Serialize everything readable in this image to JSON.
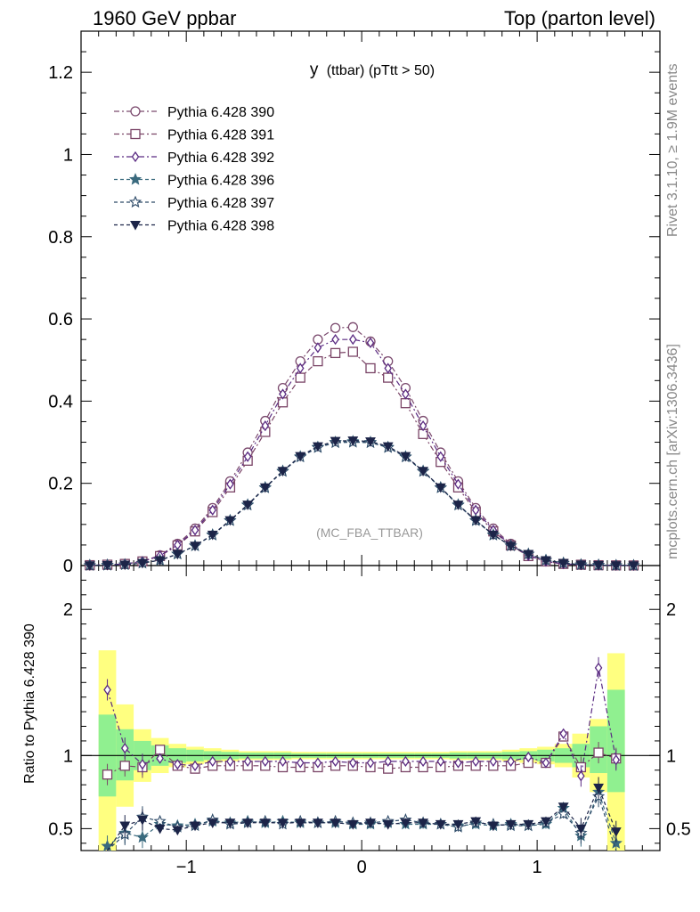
{
  "header": {
    "left": "1960 GeV ppbar",
    "right": "Top (parton level)"
  },
  "side_text": {
    "rivet": "Rivet 3.1.10, ≥ 1.9M events",
    "source": "mcplots.cern.ch [arXiv:1306.3436]"
  },
  "chart_data": [
    {
      "type": "line",
      "title_main": "y",
      "title_sub": "(ttbar) (pTtt > 50)",
      "watermark": "(MC_FBA_TTBAR)",
      "xlim": [
        -1.6,
        1.7
      ],
      "ylim": [
        0,
        1.3
      ],
      "ytick_labels": [
        "0",
        "0.2",
        "0.4",
        "0.6",
        "0.8",
        "1",
        "1.2"
      ],
      "legend_position": "top-left",
      "x": [
        -1.55,
        -1.45,
        -1.35,
        -1.25,
        -1.15,
        -1.05,
        -0.95,
        -0.85,
        -0.75,
        -0.65,
        -0.55,
        -0.45,
        -0.35,
        -0.25,
        -0.15,
        -0.05,
        0.05,
        0.15,
        0.25,
        0.35,
        0.45,
        0.55,
        0.65,
        0.75,
        0.85,
        0.95,
        1.05,
        1.15,
        1.25,
        1.35,
        1.45,
        1.55
      ],
      "series": [
        {
          "name": "Pythia 6.428 390",
          "color": "#7b4a6e",
          "marker": "circle-open",
          "dash": "6,3,2,3",
          "values": [
            0.001,
            0.002,
            0.004,
            0.01,
            0.025,
            0.053,
            0.09,
            0.14,
            0.205,
            0.275,
            0.352,
            0.432,
            0.497,
            0.55,
            0.578,
            0.58,
            0.545,
            0.497,
            0.432,
            0.352,
            0.275,
            0.205,
            0.14,
            0.09,
            0.053,
            0.025,
            0.01,
            0.004,
            0.002,
            0.001,
            0.0005,
            0.0003
          ]
        },
        {
          "name": "Pythia 6.428 391",
          "color": "#7a4466",
          "marker": "square-open",
          "dash": "6,3,2,3",
          "values": [
            0.0009,
            0.002,
            0.004,
            0.01,
            0.023,
            0.049,
            0.083,
            0.13,
            0.19,
            0.255,
            0.325,
            0.397,
            0.457,
            0.497,
            0.517,
            0.52,
            0.48,
            0.457,
            0.395,
            0.32,
            0.252,
            0.19,
            0.13,
            0.083,
            0.049,
            0.023,
            0.01,
            0.004,
            0.002,
            0.0008,
            0.0004,
            0.0003
          ]
        },
        {
          "name": "Pythia 6.428 392",
          "color": "#5a2a82",
          "marker": "diamond-open",
          "dash": "6,3,2,3",
          "values": [
            0.001,
            0.002,
            0.004,
            0.01,
            0.024,
            0.05,
            0.086,
            0.135,
            0.198,
            0.265,
            0.34,
            0.417,
            0.48,
            0.53,
            0.55,
            0.55,
            0.542,
            0.48,
            0.417,
            0.34,
            0.265,
            0.198,
            0.135,
            0.086,
            0.05,
            0.024,
            0.01,
            0.004,
            0.002,
            0.001,
            0.0005,
            0.0003
          ]
        },
        {
          "name": "Pythia 6.428 396",
          "color": "#3a6a7e",
          "marker": "star-filled",
          "dash": "4,3",
          "values": [
            0.0004,
            0.001,
            0.002,
            0.006,
            0.013,
            0.028,
            0.048,
            0.075,
            0.11,
            0.148,
            0.19,
            0.23,
            0.265,
            0.288,
            0.3,
            0.302,
            0.3,
            0.288,
            0.265,
            0.23,
            0.19,
            0.148,
            0.11,
            0.075,
            0.048,
            0.028,
            0.013,
            0.006,
            0.002,
            0.001,
            0.0004,
            0.0002
          ]
        },
        {
          "name": "Pythia 6.428 397",
          "color": "#2d4a68",
          "marker": "star-open",
          "dash": "4,3",
          "values": [
            0.0004,
            0.001,
            0.002,
            0.006,
            0.013,
            0.028,
            0.048,
            0.074,
            0.109,
            0.147,
            0.189,
            0.229,
            0.264,
            0.287,
            0.299,
            0.3,
            0.299,
            0.287,
            0.264,
            0.229,
            0.189,
            0.147,
            0.109,
            0.074,
            0.048,
            0.028,
            0.013,
            0.006,
            0.002,
            0.001,
            0.0004,
            0.0002
          ]
        },
        {
          "name": "Pythia 6.428 398",
          "color": "#1c2448",
          "marker": "triangle-down-filled",
          "dash": "4,3",
          "values": [
            0.0004,
            0.001,
            0.002,
            0.006,
            0.013,
            0.028,
            0.048,
            0.075,
            0.11,
            0.148,
            0.19,
            0.23,
            0.266,
            0.29,
            0.303,
            0.304,
            0.302,
            0.29,
            0.266,
            0.23,
            0.19,
            0.148,
            0.11,
            0.075,
            0.048,
            0.028,
            0.013,
            0.006,
            0.002,
            0.001,
            0.0004,
            0.0002
          ]
        }
      ]
    },
    {
      "type": "line",
      "ylabel": "Ratio to Pythia 6.428 390",
      "xlim": [
        -1.6,
        1.7
      ],
      "ylim": [
        0.35,
        2.3
      ],
      "xtick_labels": [
        "−1",
        "0",
        "1"
      ],
      "ytick_labels": [
        "0.5",
        "1",
        "2"
      ],
      "reference_line": 1,
      "bands": {
        "x_edges": [
          -1.5,
          -1.4,
          -1.3,
          -1.2,
          -1.1,
          -1.0,
          -0.9,
          -0.8,
          -0.7,
          -0.6,
          -0.5,
          -0.4,
          -0.3,
          -0.2,
          -0.1,
          0.0,
          0.1,
          0.2,
          0.3,
          0.4,
          0.5,
          0.6,
          0.7,
          0.8,
          0.9,
          1.0,
          1.1,
          1.2,
          1.3,
          1.4,
          1.5
        ],
        "green_lo": [
          0.72,
          0.83,
          0.9,
          0.93,
          0.95,
          0.96,
          0.97,
          0.975,
          0.98,
          0.98,
          0.98,
          0.985,
          0.985,
          0.985,
          0.985,
          0.985,
          0.985,
          0.985,
          0.985,
          0.985,
          0.98,
          0.98,
          0.98,
          0.975,
          0.97,
          0.96,
          0.95,
          0.92,
          0.88,
          0.75
        ],
        "green_hi": [
          1.28,
          1.18,
          1.1,
          1.07,
          1.05,
          1.04,
          1.03,
          1.025,
          1.02,
          1.02,
          1.02,
          1.015,
          1.015,
          1.015,
          1.015,
          1.015,
          1.015,
          1.015,
          1.015,
          1.015,
          1.02,
          1.02,
          1.02,
          1.025,
          1.03,
          1.04,
          1.05,
          1.08,
          1.2,
          1.45
        ],
        "yellow_lo": [
          0.3,
          0.65,
          0.82,
          0.88,
          0.92,
          0.94,
          0.95,
          0.96,
          0.97,
          0.97,
          0.97,
          0.975,
          0.975,
          0.975,
          0.975,
          0.975,
          0.975,
          0.975,
          0.975,
          0.975,
          0.97,
          0.97,
          0.97,
          0.96,
          0.95,
          0.94,
          0.92,
          0.85,
          0.75,
          0.35
        ],
        "yellow_hi": [
          1.72,
          1.35,
          1.18,
          1.12,
          1.08,
          1.06,
          1.05,
          1.04,
          1.03,
          1.03,
          1.03,
          1.025,
          1.025,
          1.025,
          1.025,
          1.025,
          1.025,
          1.025,
          1.025,
          1.025,
          1.03,
          1.03,
          1.03,
          1.04,
          1.05,
          1.06,
          1.08,
          1.15,
          1.25,
          1.7
        ]
      },
      "x": [
        -1.45,
        -1.35,
        -1.25,
        -1.15,
        -1.05,
        -0.95,
        -0.85,
        -0.75,
        -0.65,
        -0.55,
        -0.45,
        -0.35,
        -0.25,
        -0.15,
        -0.05,
        0.05,
        0.15,
        0.25,
        0.35,
        0.45,
        0.55,
        0.65,
        0.75,
        0.85,
        0.95,
        1.05,
        1.15,
        1.25,
        1.35,
        1.45
      ],
      "series": [
        {
          "name": "Pythia 6.428 391",
          "values": [
            0.87,
            0.93,
            0.92,
            1.04,
            0.93,
            0.91,
            0.93,
            0.93,
            0.93,
            0.93,
            0.92,
            0.92,
            0.92,
            0.93,
            0.93,
            0.92,
            0.91,
            0.92,
            0.92,
            0.92,
            0.93,
            0.93,
            0.93,
            0.93,
            0.95,
            0.95,
            1.13,
            0.92,
            1.02,
            0.98
          ]
        },
        {
          "name": "Pythia 6.428 392",
          "values": [
            1.45,
            1.05,
            0.94,
            0.98,
            0.94,
            0.93,
            0.96,
            0.96,
            0.96,
            0.96,
            0.96,
            0.95,
            0.95,
            0.96,
            0.95,
            0.95,
            0.96,
            0.96,
            0.96,
            0.96,
            0.95,
            0.96,
            0.96,
            0.96,
            0.99,
            0.95,
            1.15,
            0.86,
            1.6,
            0.97
          ]
        },
        {
          "name": "Pythia 6.428 396",
          "values": [
            0.38,
            0.47,
            0.44,
            0.53,
            0.52,
            0.53,
            0.55,
            0.54,
            0.55,
            0.54,
            0.55,
            0.54,
            0.54,
            0.54,
            0.53,
            0.53,
            0.54,
            0.53,
            0.53,
            0.53,
            0.52,
            0.53,
            0.52,
            0.53,
            0.52,
            0.53,
            0.64,
            0.45,
            0.75,
            0.4
          ]
        },
        {
          "name": "Pythia 6.428 397",
          "values": [
            0.34,
            0.46,
            0.58,
            0.55,
            0.51,
            0.52,
            0.56,
            0.53,
            0.54,
            0.55,
            0.53,
            0.55,
            0.54,
            0.55,
            0.54,
            0.54,
            0.55,
            0.56,
            0.54,
            0.53,
            0.51,
            0.54,
            0.53,
            0.52,
            0.52,
            0.54,
            0.6,
            0.47,
            0.72,
            0.3
          ]
        },
        {
          "name": "Pythia 6.428 398",
          "values": [
            0.3,
            0.52,
            0.56,
            0.5,
            0.49,
            0.52,
            0.54,
            0.54,
            0.54,
            0.54,
            0.54,
            0.54,
            0.54,
            0.54,
            0.53,
            0.54,
            0.53,
            0.54,
            0.54,
            0.53,
            0.53,
            0.55,
            0.52,
            0.53,
            0.53,
            0.55,
            0.65,
            0.5,
            0.78,
            0.48
          ]
        }
      ]
    }
  ]
}
